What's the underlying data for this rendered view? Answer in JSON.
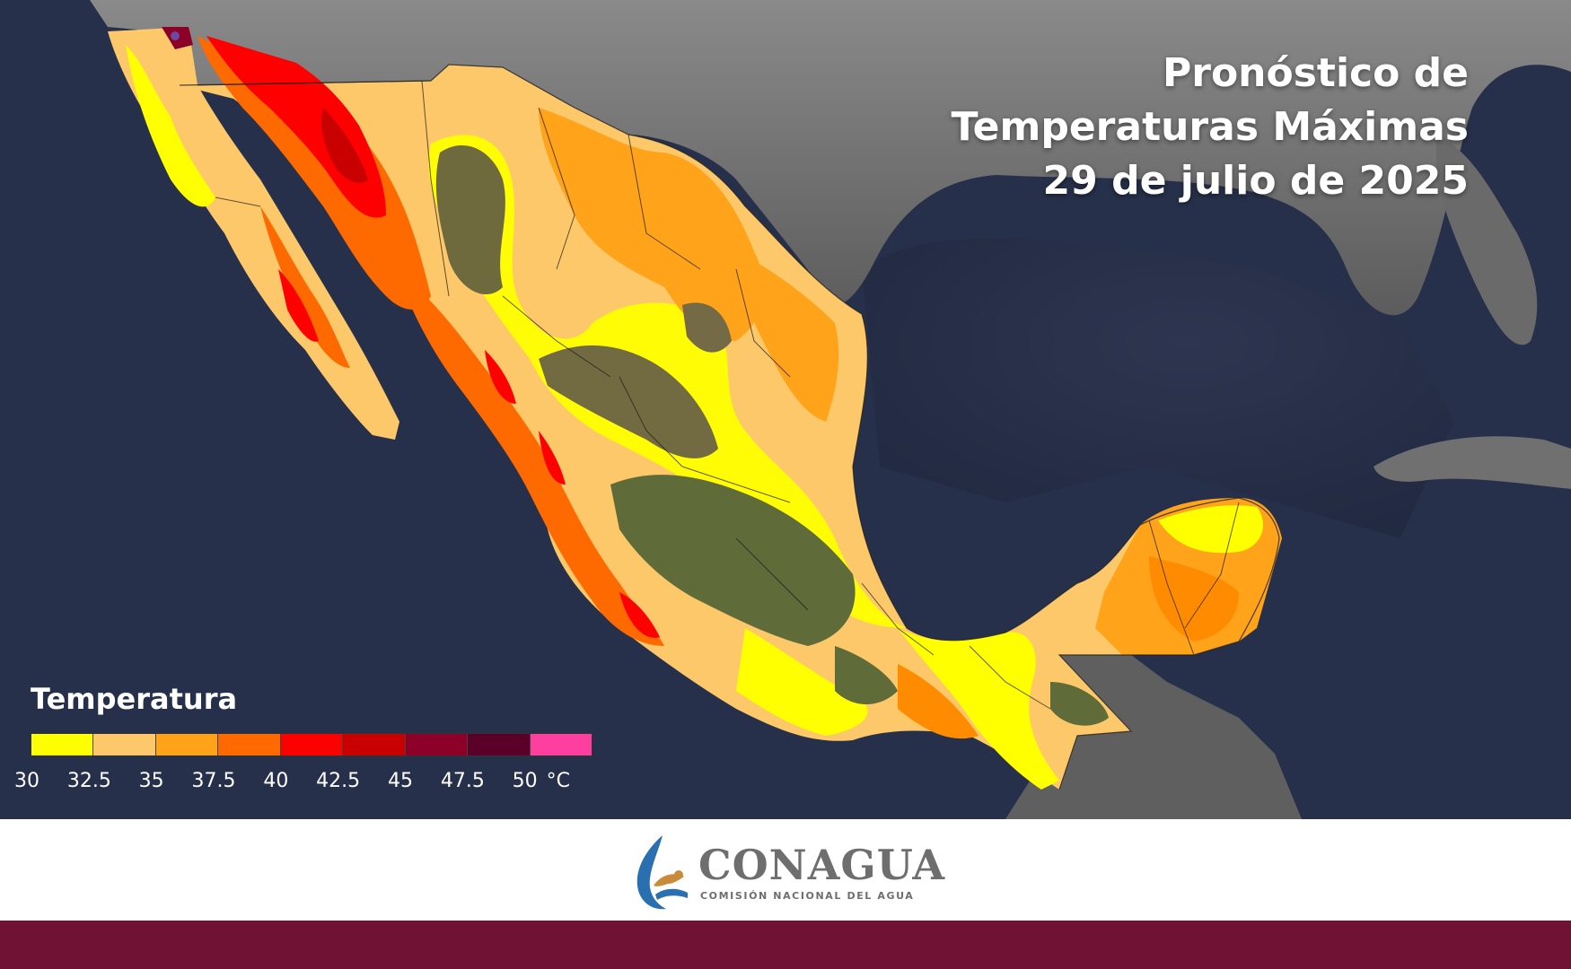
{
  "title": {
    "line1": "Pronóstico de",
    "line2": "Temperaturas Máximas",
    "line3": "29 de julio de 2025"
  },
  "legend": {
    "title": "Temperatura",
    "ticks": [
      "30",
      "32.5",
      "35",
      "37.5",
      "40",
      "42.5",
      "45",
      "47.5",
      "50"
    ],
    "unit": "°C",
    "colors": [
      "#ffff00",
      "#fdc86a",
      "#ffa31a",
      "#ff6a00",
      "#ff0000",
      "#c80000",
      "#8c0028",
      "#5a0028",
      "#ff3fa0"
    ]
  },
  "footer": {
    "org_name": "CONAGUA",
    "org_subtitle": "COMISIÓN NACIONAL DEL AGUA",
    "band_color": "#6f1234"
  },
  "colors": {
    "ocean": "#27304a",
    "land_usa": "#6b6b6b",
    "highlands": "#6f6a3e"
  }
}
